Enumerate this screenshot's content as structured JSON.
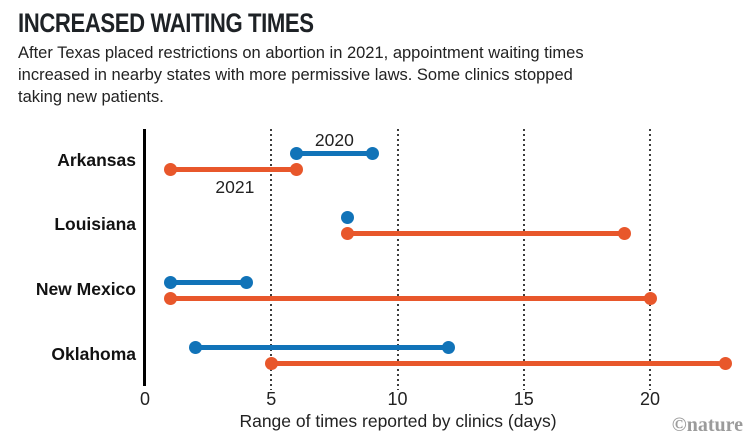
{
  "header": {
    "title": "INCREASED WAITING TIMES",
    "subtitle_lines": [
      "After Texas placed restrictions on abortion in 2021, appointment waiting times",
      "increased in nearby states with more permissive laws. Some clinics stopped",
      "taking new patients."
    ]
  },
  "chart_data": {
    "type": "dumbbell-range",
    "categories": [
      "Arkansas",
      "Louisiana",
      "New Mexico",
      "Oklahoma"
    ],
    "series": [
      {
        "name": "2020",
        "color": "#1173b8",
        "ranges": [
          [
            6,
            9
          ],
          [
            8,
            8
          ],
          [
            1,
            4
          ],
          [
            2,
            12
          ]
        ]
      },
      {
        "name": "2021",
        "color": "#e8572b",
        "ranges": [
          [
            1,
            6
          ],
          [
            8,
            19
          ],
          [
            1,
            20
          ],
          [
            5,
            23
          ]
        ]
      }
    ],
    "annotations": [
      {
        "text": "2020",
        "row": "Arkansas",
        "position": "above",
        "x_day": 7.5
      },
      {
        "text": "2021",
        "row": "Arkansas",
        "position": "below",
        "x_day": 3.56
      }
    ],
    "xlabel": "Range of times reported by clinics (days)",
    "xticks": [
      0,
      5,
      10,
      15,
      20
    ],
    "xlim": [
      0,
      24
    ],
    "grid": "dotted-vertical",
    "legend": "inline-annotations"
  },
  "footer": {
    "credit": "©nature"
  }
}
